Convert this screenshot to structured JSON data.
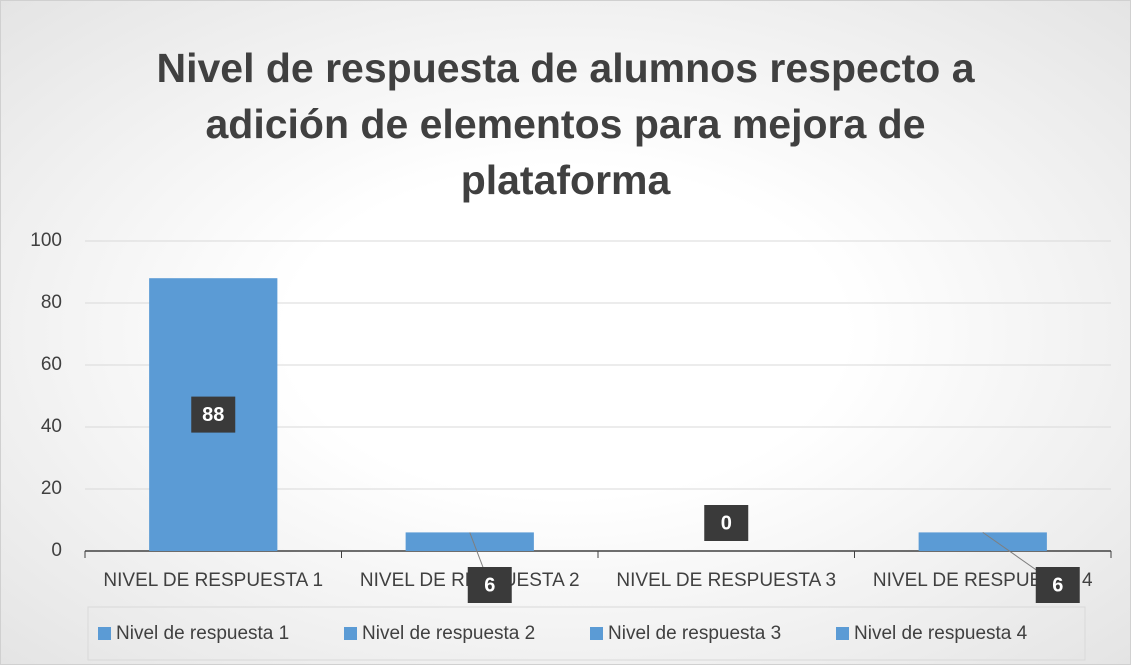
{
  "chart_data": {
    "type": "bar",
    "title": "Nivel de respuesta de alumnos respecto a adición de elementos para mejora de plataforma",
    "categories": [
      "NIVEL DE RESPUESTA 1",
      "NIVEL DE RESPUESTA 2",
      "NIVEL DE RESPUESTA 3",
      "NIVEL DE RESPUESTA 4"
    ],
    "legend": [
      "Nivel de respuesta 1",
      "Nivel de respuesta 2",
      "Nivel de respuesta 3",
      "Nivel de respuesta 4"
    ],
    "values": [
      88,
      6,
      0,
      6
    ],
    "color": "#5b9bd5",
    "ylim": [
      0,
      100
    ],
    "yticks": [
      0,
      20,
      40,
      60,
      80,
      100
    ],
    "grid": true
  }
}
